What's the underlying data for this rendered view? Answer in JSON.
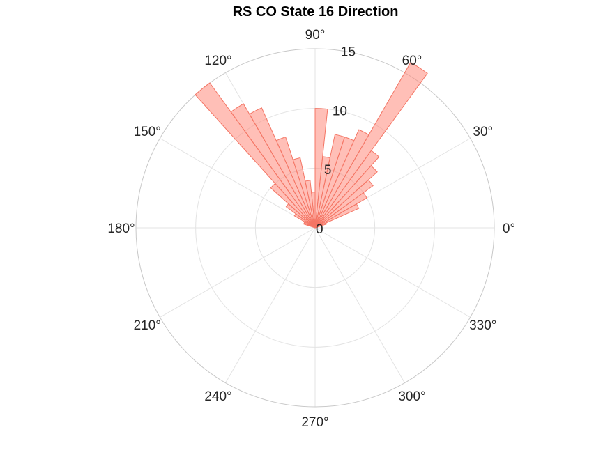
{
  "chart_data": {
    "type": "polar-histogram",
    "title": "RS  CO State 16 Direction",
    "angle_unit": "degrees",
    "theta_ticks": [
      0,
      30,
      60,
      90,
      120,
      150,
      180,
      210,
      240,
      270,
      300,
      330
    ],
    "theta_tick_labels": [
      "0°",
      "30°",
      "60°",
      "90°",
      "120°",
      "150°",
      "180°",
      "210°",
      "240°",
      "270°",
      "300°",
      "330°"
    ],
    "r_ticks": [
      0,
      5,
      10,
      15
    ],
    "r_tick_labels": [
      "0",
      "5",
      "10",
      "15"
    ],
    "rlim": [
      0,
      15
    ],
    "grid": true,
    "bin_width_deg": 6,
    "series": [
      {
        "bins": [
          {
            "start": 18,
            "end": 24,
            "value": 1
          },
          {
            "start": 24,
            "end": 30,
            "value": 4
          },
          {
            "start": 30,
            "end": 36,
            "value": 5
          },
          {
            "start": 36,
            "end": 42,
            "value": 6
          },
          {
            "start": 42,
            "end": 48,
            "value": 7
          },
          {
            "start": 48,
            "end": 54,
            "value": 8
          },
          {
            "start": 54,
            "end": 60,
            "value": 16
          },
          {
            "start": 60,
            "end": 66,
            "value": 9
          },
          {
            "start": 66,
            "end": 72,
            "value": 8
          },
          {
            "start": 72,
            "end": 78,
            "value": 8
          },
          {
            "start": 78,
            "end": 84,
            "value": 6
          },
          {
            "start": 84,
            "end": 90,
            "value": 10
          },
          {
            "start": 90,
            "end": 96,
            "value": 3
          },
          {
            "start": 96,
            "end": 102,
            "value": 4
          },
          {
            "start": 102,
            "end": 108,
            "value": 6
          },
          {
            "start": 108,
            "end": 114,
            "value": 8
          },
          {
            "start": 114,
            "end": 120,
            "value": 11
          },
          {
            "start": 120,
            "end": 126,
            "value": 12
          },
          {
            "start": 126,
            "end": 132,
            "value": 15
          },
          {
            "start": 132,
            "end": 138,
            "value": 5
          },
          {
            "start": 138,
            "end": 144,
            "value": 3
          },
          {
            "start": 144,
            "end": 150,
            "value": 2
          },
          {
            "start": 150,
            "end": 156,
            "value": 1
          },
          {
            "start": 156,
            "end": 162,
            "value": 1
          }
        ]
      }
    ]
  },
  "colors": {
    "bar_fill": "#ff8070",
    "bar_fill_opacity": "0.5",
    "bar_edge": "#f47564",
    "grid": "#e3e3e3",
    "outer_circle": "#c8c8c8",
    "text": "#262626"
  }
}
